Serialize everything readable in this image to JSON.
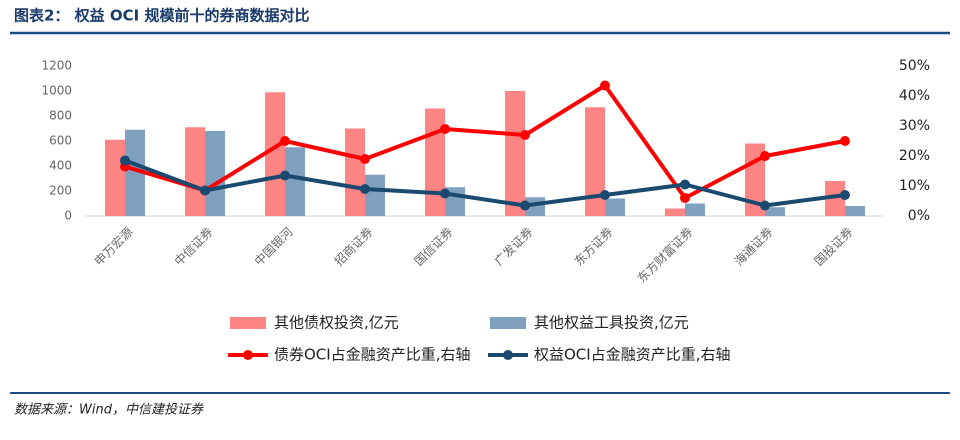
{
  "header": {
    "title": "图表2： 权益 OCI 规模前十的券商数据对比"
  },
  "chart_data": {
    "type": "bar",
    "categories": [
      "申万宏源",
      "中信证券",
      "中国银河",
      "招商证券",
      "国信证券",
      "广发证券",
      "东方证券",
      "东方财富证券",
      "海通证券",
      "国投证券"
    ],
    "series": [
      {
        "name": "其他债权投资,亿元",
        "type": "bar",
        "color": "#ff8585",
        "values": [
          610,
          710,
          990,
          700,
          860,
          1000,
          870,
          60,
          580,
          280
        ]
      },
      {
        "name": "其他权益工具投资,亿元",
        "type": "bar",
        "color": "#7fa0bf",
        "values": [
          690,
          680,
          550,
          330,
          230,
          150,
          140,
          100,
          70,
          80
        ]
      },
      {
        "name": "债券OCI占金融资产比重,右轴",
        "type": "line",
        "axis": "y2",
        "color": "#ff0000",
        "values": [
          16.5,
          8.5,
          25,
          19,
          29,
          27,
          43.5,
          6,
          20,
          25
        ]
      },
      {
        "name": "权益OCI占金融资产比重,右轴",
        "type": "line",
        "axis": "y2",
        "color": "#1a4a70",
        "values": [
          18.5,
          8.5,
          13.5,
          9,
          7.5,
          3.5,
          7,
          10.5,
          3.5,
          7
        ]
      }
    ],
    "ylim": [
      0,
      1200
    ],
    "yticks": [
      0,
      200,
      400,
      600,
      800,
      1000,
      1200
    ],
    "y2lim": [
      0,
      50
    ],
    "y2ticks": [
      {
        "value": 0,
        "label": "0%"
      },
      {
        "value": 10,
        "label": "10%"
      },
      {
        "value": 20,
        "label": "20%"
      },
      {
        "value": 30,
        "label": "30%"
      },
      {
        "value": 40,
        "label": "40%"
      },
      {
        "value": 50,
        "label": "50%"
      }
    ],
    "grid": false
  },
  "footer": {
    "source": "数据来源：Wind，中信建投证券"
  }
}
